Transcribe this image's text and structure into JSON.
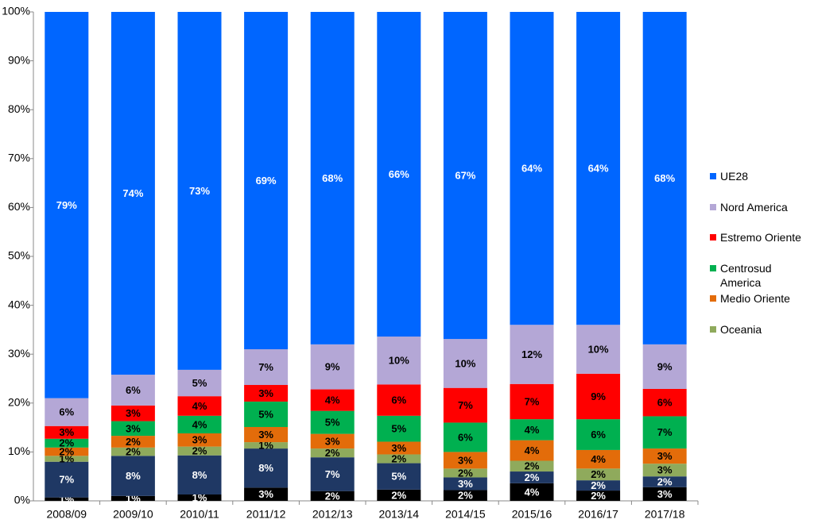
{
  "chart_data": {
    "type": "stacked_bar_100",
    "categories": [
      "2008/09",
      "2009/10",
      "2010/11",
      "2011/12",
      "2012/13",
      "2013/14",
      "2014/15",
      "2015/16",
      "2016/17",
      "2017/18"
    ],
    "series": [
      {
        "color": "#000000",
        "values": [
          0.7,
          1.0,
          1.3,
          2.7,
          2.0,
          2.3,
          2.2,
          3.6,
          2.1,
          2.8
        ],
        "value_labels": [
          "1%",
          "1%",
          "1%",
          "3%",
          "2%",
          "2%",
          "2%",
          "4%",
          "2%",
          "3%"
        ]
      },
      {
        "color": "#1f3864",
        "values": [
          7.3,
          8.2,
          8.0,
          8.0,
          6.9,
          5.4,
          2.6,
          2.4,
          2.1,
          2.2
        ],
        "value_labels": [
          "7%",
          "8%",
          "8%",
          "8%",
          "7%",
          "5%",
          "3%",
          "2%",
          "2%",
          "2%"
        ]
      },
      {
        "name": "Oceania",
        "color": "#8faa5c",
        "values": [
          1.2,
          1.7,
          1.8,
          1.3,
          1.8,
          1.8,
          1.8,
          2.2,
          2.4,
          2.6
        ],
        "value_labels": [
          "1%",
          "2%",
          "2%",
          "1%",
          "2%",
          "2%",
          "2%",
          "2%",
          "2%",
          "3%"
        ]
      },
      {
        "name": "Medio Oriente",
        "color": "#e36c0a",
        "values": [
          1.7,
          2.4,
          2.7,
          3.1,
          3.0,
          2.6,
          3.4,
          4.2,
          3.8,
          3.1
        ],
        "value_labels": [
          "2%",
          "2%",
          "3%",
          "3%",
          "3%",
          "3%",
          "3%",
          "4%",
          "4%",
          "3%"
        ]
      },
      {
        "name": "Centrosud America",
        "color": "#00b050",
        "values": [
          1.8,
          3.0,
          3.6,
          5.2,
          4.7,
          5.3,
          6.0,
          4.3,
          6.3,
          6.6
        ],
        "value_labels": [
          "2%",
          "3%",
          "4%",
          "5%",
          "5%",
          "5%",
          "6%",
          "4%",
          "6%",
          "7%"
        ]
      },
      {
        "name": "Estremo Oriente",
        "color": "#ff0000",
        "values": [
          2.6,
          3.2,
          4.0,
          3.4,
          4.4,
          6.4,
          7.1,
          7.2,
          9.3,
          5.6
        ],
        "value_labels": [
          "3%",
          "3%",
          "4%",
          "3%",
          "4%",
          "6%",
          "7%",
          "7%",
          "9%",
          "6%"
        ]
      },
      {
        "name": "Nord America",
        "color": "#b4a7d6",
        "values": [
          5.7,
          6.3,
          5.4,
          7.3,
          9.2,
          9.8,
          10.0,
          12.1,
          10.0,
          9.1
        ],
        "value_labels": [
          "6%",
          "6%",
          "5%",
          "7%",
          "9%",
          "10%",
          "10%",
          "12%",
          "10%",
          "9%"
        ]
      },
      {
        "name": "UE28",
        "color": "#0066ff",
        "values": [
          79.0,
          74.2,
          73.2,
          69.0,
          68.0,
          66.4,
          66.9,
          64.0,
          64.0,
          68.0
        ],
        "value_labels": [
          "79%",
          "74%",
          "73%",
          "69%",
          "68%",
          "66%",
          "67%",
          "64%",
          "64%",
          "68%"
        ]
      }
    ],
    "ylim": [
      0,
      100
    ],
    "yticks": [
      {
        "value": 0,
        "label": "0%"
      },
      {
        "value": 10,
        "label": "10%"
      },
      {
        "value": 20,
        "label": "20%"
      },
      {
        "value": 30,
        "label": "30%"
      },
      {
        "value": 40,
        "label": "40%"
      },
      {
        "value": 50,
        "label": "50%"
      },
      {
        "value": 60,
        "label": "60%"
      },
      {
        "value": 70,
        "label": "70%"
      },
      {
        "value": 80,
        "label": "80%"
      },
      {
        "value": 90,
        "label": "90%"
      },
      {
        "value": 100,
        "label": "100%"
      }
    ],
    "legend": "right"
  }
}
